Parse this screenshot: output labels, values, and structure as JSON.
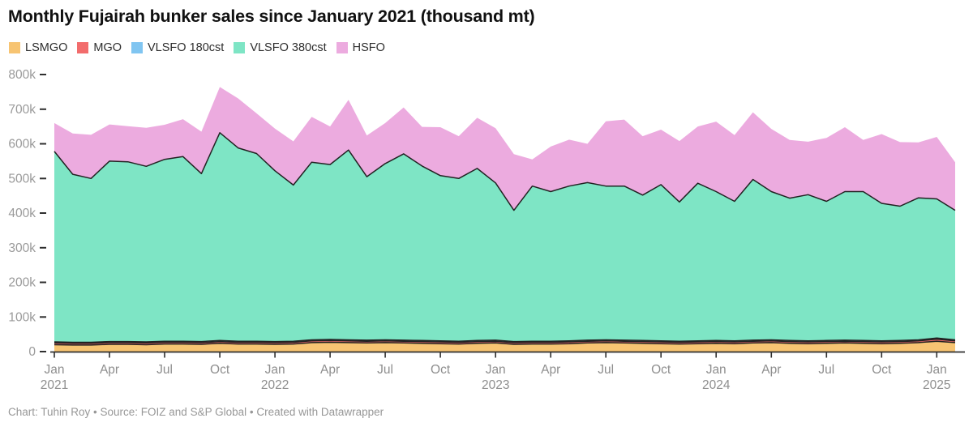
{
  "chart": {
    "title": "Monthly Fujairah bunker sales since January 2021 (thousand mt)"
  },
  "legend": [
    {
      "label": "LSMGO",
      "color": "#F7C472"
    },
    {
      "label": "MGO",
      "color": "#F26C6C"
    },
    {
      "label": "VLSFO 180cst",
      "color": "#80C5F1"
    },
    {
      "label": "VLSFO 380cst",
      "color": "#7EE5C5"
    },
    {
      "label": "HSFO",
      "color": "#ECABDF"
    }
  ],
  "footer": {
    "text": "Chart: Tuhin Roy • Source: FOIZ and S&P Global • Created with Datawrapper"
  },
  "chart_data": {
    "type": "area",
    "stacked": true,
    "title": "Monthly Fujairah bunker sales since January 2021 (thousand mt)",
    "unit": "thousand mt",
    "xlabel": "",
    "ylabel": "",
    "ylim": [
      0,
      800
    ],
    "grid": false,
    "legend_position": "top",
    "boundary_stroke": "#222222",
    "axis_color": "#2f2f2f",
    "y_label_color": "#9a9a9a",
    "x_label_color": "#8e8e8e",
    "x": [
      "Jan 2021",
      "Feb 2021",
      "Mar 2021",
      "Apr 2021",
      "May 2021",
      "Jun 2021",
      "Jul 2021",
      "Aug 2021",
      "Sep 2021",
      "Oct 2021",
      "Nov 2021",
      "Dec 2021",
      "Jan 2022",
      "Feb 2022",
      "Mar 2022",
      "Apr 2022",
      "May 2022",
      "Jun 2022",
      "Jul 2022",
      "Aug 2022",
      "Sep 2022",
      "Oct 2022",
      "Nov 2022",
      "Dec 2022",
      "Jan 2023",
      "Feb 2023",
      "Mar 2023",
      "Apr 2023",
      "May 2023",
      "Jun 2023",
      "Jul 2023",
      "Aug 2023",
      "Sep 2023",
      "Oct 2023",
      "Nov 2023",
      "Dec 2023",
      "Jan 2024",
      "Feb 2024",
      "Mar 2024",
      "Apr 2024",
      "May 2024",
      "Jun 2024",
      "Jul 2024",
      "Aug 2024",
      "Sep 2024",
      "Oct 2024",
      "Nov 2024",
      "Dec 2024",
      "Jan 2025",
      "Feb 2025"
    ],
    "series": [
      {
        "name": "LSMGO",
        "color": "#F7C472",
        "top_line": true,
        "values": [
          20,
          19,
          19,
          21,
          21,
          20,
          22,
          22,
          21,
          24,
          22,
          22,
          21,
          22,
          26,
          27,
          26,
          25,
          26,
          25,
          24,
          23,
          22,
          24,
          25,
          21,
          22,
          22,
          23,
          25,
          26,
          25,
          24,
          23,
          22,
          23,
          24,
          23,
          25,
          26,
          24,
          23,
          24,
          25,
          24,
          23,
          24,
          26,
          30,
          26
        ]
      },
      {
        "name": "MGO",
        "color": "#F26C6C",
        "top_line": true,
        "values": [
          5,
          5,
          5,
          5,
          5,
          5,
          5,
          5,
          5,
          5,
          5,
          5,
          5,
          5,
          5,
          5,
          5,
          5,
          5,
          5,
          5,
          5,
          5,
          5,
          5,
          5,
          5,
          5,
          5,
          5,
          5,
          5,
          5,
          5,
          5,
          5,
          5,
          5,
          5,
          5,
          5,
          5,
          5,
          5,
          5,
          5,
          5,
          5,
          6,
          5
        ]
      },
      {
        "name": "VLSFO 180cst",
        "color": "#80C5F1",
        "top_line": true,
        "values": [
          3,
          3,
          3,
          3,
          3,
          3,
          3,
          3,
          3,
          3,
          3,
          3,
          3,
          3,
          3,
          3,
          3,
          3,
          3,
          3,
          3,
          3,
          3,
          3,
          3,
          3,
          3,
          3,
          3,
          3,
          3,
          3,
          3,
          3,
          3,
          3,
          3,
          3,
          3,
          3,
          3,
          3,
          3,
          3,
          3,
          3,
          3,
          3,
          3,
          3
        ]
      },
      {
        "name": "VLSFO 380cst",
        "color": "#7EE5C5",
        "top_line": true,
        "values": [
          550,
          485,
          473,
          521,
          519,
          507,
          525,
          533,
          485,
          600,
          558,
          542,
          493,
          451,
          513,
          505,
          548,
          472,
          509,
          538,
          504,
          477,
          470,
          497,
          454,
          379,
          448,
          432,
          447,
          455,
          444,
          445,
          420,
          451,
          402,
          455,
          430,
          403,
          464,
          428,
          411,
          422,
          402,
          429,
          430,
          397,
          388,
          410,
          402,
          374
        ]
      },
      {
        "name": "HSFO",
        "color": "#ECABDF",
        "top_line": false,
        "values": [
          82,
          118,
          126,
          106,
          103,
          111,
          100,
          108,
          121,
          132,
          143,
          116,
          122,
          126,
          131,
          110,
          145,
          119,
          117,
          134,
          113,
          140,
          122,
          146,
          158,
          162,
          77,
          130,
          134,
          112,
          187,
          192,
          170,
          159,
          176,
          164,
          202,
          191,
          194,
          181,
          168,
          153,
          183,
          186,
          149,
          200,
          185,
          160,
          179,
          139
        ]
      }
    ],
    "y_ticks": [
      {
        "value": 0,
        "label": "0"
      },
      {
        "value": 100,
        "label": "100k"
      },
      {
        "value": 200,
        "label": "200k"
      },
      {
        "value": 300,
        "label": "300k"
      },
      {
        "value": 400,
        "label": "400k"
      },
      {
        "value": 500,
        "label": "500k"
      },
      {
        "value": 600,
        "label": "600k"
      },
      {
        "value": 700,
        "label": "700k"
      },
      {
        "value": 800,
        "label": "800k"
      }
    ],
    "x_ticks": [
      {
        "index": 0,
        "label": "Jan",
        "year": "2021"
      },
      {
        "index": 3,
        "label": "Apr"
      },
      {
        "index": 6,
        "label": "Jul"
      },
      {
        "index": 9,
        "label": "Oct"
      },
      {
        "index": 12,
        "label": "Jan",
        "year": "2022"
      },
      {
        "index": 15,
        "label": "Apr"
      },
      {
        "index": 18,
        "label": "Jul"
      },
      {
        "index": 21,
        "label": "Oct"
      },
      {
        "index": 24,
        "label": "Jan",
        "year": "2023"
      },
      {
        "index": 27,
        "label": "Apr"
      },
      {
        "index": 30,
        "label": "Jul"
      },
      {
        "index": 33,
        "label": "Oct"
      },
      {
        "index": 36,
        "label": "Jan",
        "year": "2024"
      },
      {
        "index": 39,
        "label": "Apr"
      },
      {
        "index": 42,
        "label": "Jul"
      },
      {
        "index": 45,
        "label": "Oct"
      },
      {
        "index": 48,
        "label": "Jan",
        "year": "2025"
      }
    ]
  }
}
